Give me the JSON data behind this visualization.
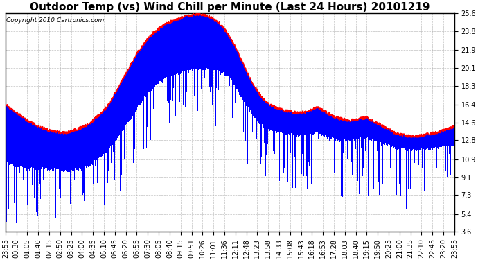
{
  "title": "Outdoor Temp (vs) Wind Chill per Minute (Last 24 Hours) 20101219",
  "copyright": "Copyright 2010 Cartronics.com",
  "yticks": [
    3.6,
    5.4,
    7.3,
    9.1,
    10.9,
    12.8,
    14.6,
    16.4,
    18.3,
    20.1,
    21.9,
    23.8,
    25.6
  ],
  "ylim_low": 3.6,
  "ylim_high": 25.6,
  "xtick_labels": [
    "23:55",
    "00:30",
    "01:05",
    "01:40",
    "02:15",
    "02:50",
    "03:25",
    "04:00",
    "04:35",
    "05:10",
    "05:45",
    "06:20",
    "06:55",
    "07:30",
    "08:05",
    "08:40",
    "09:15",
    "09:51",
    "10:26",
    "11:01",
    "11:36",
    "12:11",
    "12:48",
    "13:23",
    "13:58",
    "14:33",
    "15:08",
    "15:43",
    "16:18",
    "16:53",
    "17:28",
    "18:03",
    "18:40",
    "19:15",
    "19:50",
    "20:25",
    "21:00",
    "21:35",
    "22:10",
    "22:45",
    "23:20",
    "23:55"
  ],
  "bar_color": "#0000ff",
  "line_color": "#ff0000",
  "bg_color": "#ffffff",
  "grid_color": "#b0b0b0",
  "title_fontsize": 11,
  "copyright_fontsize": 6.5,
  "tick_fontsize": 7,
  "outdoor_temp_profile": [
    16.4,
    16.0,
    15.6,
    15.2,
    14.8,
    14.5,
    14.2,
    14.0,
    13.8,
    13.7,
    13.6,
    13.6,
    13.7,
    13.9,
    14.1,
    14.4,
    14.8,
    15.3,
    15.8,
    16.5,
    17.5,
    18.5,
    19.5,
    20.5,
    21.5,
    22.3,
    23.0,
    23.6,
    24.0,
    24.4,
    24.7,
    24.9,
    25.1,
    25.3,
    25.4,
    25.5,
    25.4,
    25.3,
    25.0,
    24.6,
    24.0,
    23.2,
    22.2,
    21.0,
    19.8,
    18.7,
    17.8,
    17.0,
    16.5,
    16.2,
    16.0,
    15.8,
    15.7,
    15.6,
    15.6,
    15.7,
    15.9,
    16.2,
    15.8,
    15.5,
    15.2,
    15.0,
    14.9,
    14.8,
    14.9,
    15.0,
    15.1,
    14.8,
    14.5,
    14.2,
    13.9,
    13.6,
    13.4,
    13.3,
    13.2,
    13.2,
    13.3,
    13.4,
    13.5,
    13.6,
    13.8,
    14.0,
    14.2
  ],
  "wc_drop_profile": [
    6.0,
    5.5,
    5.5,
    5.0,
    5.0,
    4.5,
    4.5,
    4.0,
    4.0,
    3.8,
    3.8,
    3.8,
    4.0,
    4.0,
    4.2,
    4.2,
    4.3,
    4.3,
    4.5,
    4.5,
    4.8,
    5.0,
    5.2,
    5.5,
    5.5,
    5.5,
    5.5,
    5.5,
    5.5,
    5.5,
    5.5,
    5.5,
    5.5,
    5.5,
    5.5,
    5.5,
    5.5,
    5.3,
    5.0,
    4.8,
    4.5,
    4.2,
    4.0,
    3.8,
    3.5,
    3.2,
    3.0,
    2.8,
    2.6,
    2.5,
    2.4,
    2.3,
    2.3,
    2.3,
    2.3,
    2.4,
    2.5,
    2.6,
    2.5,
    2.4,
    2.3,
    2.2,
    2.1,
    2.0,
    2.0,
    2.0,
    2.0,
    1.9,
    1.8,
    1.7,
    1.6,
    1.5,
    1.5,
    1.4,
    1.4,
    1.4,
    1.4,
    1.5,
    1.5,
    1.6,
    1.7,
    1.8,
    1.9
  ],
  "spike_frequency": 0.35,
  "spike_extra_drop_scale": 6.0,
  "n_points": 1440,
  "figwidth": 6.9,
  "figheight": 3.75,
  "dpi": 100
}
